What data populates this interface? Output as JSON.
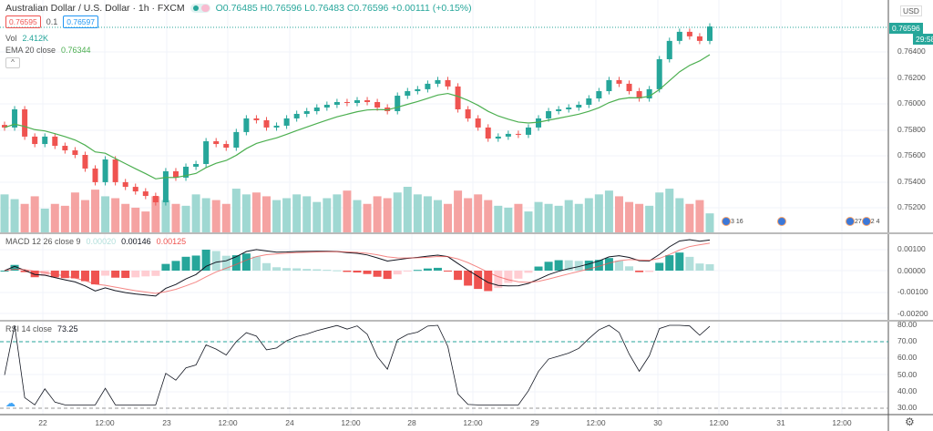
{
  "header": {
    "title": "Australian Dollar / U.S. Dollar · 1h · FXCM",
    "ohlc": "O0.76485 H0.76596 L0.76483 C0.76596 +0.00111 (+0.15%)",
    "bid": "0.76595",
    "spread": "0.1",
    "ask": "0.76597",
    "vol_label": "Vol",
    "vol_value": "2.412K",
    "ema_label": "EMA 20 close",
    "ema_value": "0.76344",
    "collapse": "^"
  },
  "price_axis": {
    "currency": "USD",
    "last_price": "0.76596",
    "countdown": "29:58",
    "ticks": [
      "0.76400",
      "0.76200",
      "0.76000",
      "0.75800",
      "0.75600",
      "0.75400",
      "0.75200"
    ]
  },
  "macd": {
    "label": "MACD 12 26 close 9",
    "hist": "0.00020",
    "macd": "0.00146",
    "signal": "0.00125",
    "ticks": [
      "0.00100",
      "0.00000",
      "-0.00100",
      "-0.00200"
    ]
  },
  "rsi": {
    "label": "RSI 14 close",
    "value": "73.25",
    "ticks": [
      "80.00",
      "70.00",
      "60.00",
      "50.00",
      "40.00",
      "30.00"
    ]
  },
  "time_axis": [
    "22",
    "12:00",
    "23",
    "12:00",
    "24",
    "12:00",
    "28",
    "12:00",
    "29",
    "12:00",
    "30",
    "12:00",
    "31",
    "12:00"
  ],
  "events": [
    "3",
    "16",
    "27",
    "2",
    "4"
  ],
  "colors": {
    "up": "#26a69a",
    "down": "#ef5350",
    "ema": "#4caf50"
  },
  "chart_data": {
    "type": "candlestick",
    "symbol": "AUDUSD",
    "ylim": [
      0.7505,
      0.7672
    ],
    "closes": [
      0.75818,
      0.75958,
      0.75748,
      0.75691,
      0.75748,
      0.75677,
      0.75642,
      0.75607,
      0.75502,
      0.75397,
      0.75572,
      0.75397,
      0.75361,
      0.75326,
      0.75291,
      0.75242,
      0.75481,
      0.75432,
      0.75516,
      0.75537,
      0.75712,
      0.75691,
      0.75663,
      0.75783,
      0.75888,
      0.75874,
      0.75818,
      0.75832,
      0.75888,
      0.75923,
      0.75944,
      0.75972,
      0.75993,
      0.76014,
      0.76007,
      0.76028,
      0.76014,
      0.75972,
      0.75944,
      0.76063,
      0.76098,
      0.76113,
      0.76155,
      0.76183,
      0.76134,
      0.75958,
      0.75888,
      0.75818,
      0.75733,
      0.75748,
      0.75769,
      0.75762,
      0.75818,
      0.75888,
      0.75944,
      0.75958,
      0.75972,
      0.75993,
      0.76042,
      0.76098,
      0.76183,
      0.76155,
      0.76098,
      0.76042,
      0.76113,
      0.76344,
      0.76485,
      0.76555,
      0.7652,
      0.76485,
      0.76596
    ],
    "volumes": [
      40,
      35,
      30,
      38,
      25,
      30,
      28,
      42,
      34,
      45,
      38,
      36,
      30,
      26,
      22,
      38,
      34,
      30,
      28,
      40,
      36,
      34,
      30,
      46,
      40,
      42,
      38,
      34,
      36,
      40,
      38,
      32,
      36,
      40,
      44,
      34,
      30,
      38,
      36,
      42,
      48,
      40,
      38,
      34,
      30,
      44,
      36,
      40,
      34,
      28,
      26,
      30,
      22,
      32,
      30,
      28,
      34,
      30,
      36,
      40,
      44,
      38,
      32,
      30,
      28,
      42,
      46,
      36,
      30,
      34,
      20
    ]
  }
}
